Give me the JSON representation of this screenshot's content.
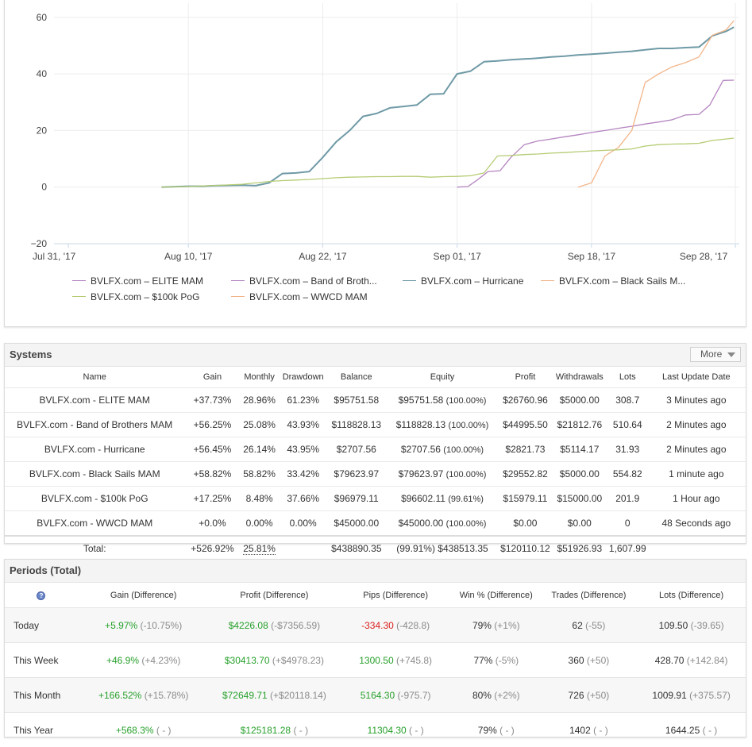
{
  "chart_data": {
    "type": "line",
    "x_ticks": [
      "Jul 31, '17",
      "Aug 10, '17",
      "Aug 22, '17",
      "Sep 01, '17",
      "Sep 18, '17",
      "Sep 28, '17"
    ],
    "y_ticks": [
      "60",
      "40",
      "20",
      "0",
      "−20"
    ],
    "ylim": [
      -20,
      65
    ],
    "legend_placement": "bottom",
    "series": [
      {
        "name": "BVLFX.com – ELITE MAM",
        "color": "#b484c0",
        "x": [
          30,
          30.8,
          31.5,
          32.3,
          33.2,
          34,
          35,
          36,
          37,
          38,
          39,
          40,
          41,
          42,
          43,
          44,
          45,
          46,
          47,
          48,
          48.8,
          49.8,
          50.6
        ],
        "y": [
          0,
          0.2,
          2.5,
          5.5,
          5.8,
          10.5,
          15,
          16.3,
          17,
          17.8,
          18.5,
          19.3,
          20,
          20.8,
          21.5,
          22.3,
          23,
          23.8,
          25.5,
          25.7,
          29,
          37.7,
          37.8
        ]
      },
      {
        "name": "BVLFX.com – Band of Broth...",
        "color": "#b484c0",
        "x": [],
        "y": []
      },
      {
        "name": "BVLFX.com – Hurricane",
        "color": "#6f9aa6",
        "x": [
          8,
          10,
          11,
          12,
          13,
          14,
          15,
          16,
          17,
          18,
          19,
          20,
          21,
          22,
          23,
          24,
          25,
          26,
          27,
          28,
          29,
          30,
          31,
          32,
          33,
          34,
          35,
          35.5,
          36,
          37,
          38,
          39,
          40,
          41,
          42,
          43,
          44,
          45,
          46,
          47,
          48,
          49,
          50,
          50.6
        ],
        "y": [
          0,
          0.3,
          0.3,
          0.5,
          0.6,
          0.7,
          0.5,
          1.5,
          4.8,
          5,
          5.5,
          10.5,
          16,
          20,
          25,
          26,
          28,
          28.5,
          29,
          32.8,
          33,
          40,
          41,
          44.3,
          44.6,
          45,
          45.3,
          45.4,
          45.6,
          46,
          46.3,
          46.7,
          47,
          47.3,
          47.7,
          48,
          48.5,
          49,
          49,
          49.3,
          49.5,
          53.5,
          55,
          56.5
        ]
      },
      {
        "name": "BVLFX.com – Black Sails M...",
        "color": "#f2b58a",
        "x": [
          39,
          40,
          41,
          42,
          43,
          44,
          45,
          46,
          47,
          48,
          49,
          50,
          50.6
        ],
        "y": [
          0,
          1.5,
          11,
          14,
          20,
          37,
          40,
          42.5,
          44,
          46,
          53.7,
          55.5,
          58.8
        ]
      },
      {
        "name": "BVLFX.com – $100k PoG",
        "color": "#b5cc74",
        "x": [
          8,
          10,
          11,
          12,
          13,
          14,
          15,
          16,
          17,
          18,
          19,
          20,
          21,
          22,
          23,
          24,
          25,
          26,
          27,
          28,
          29,
          30,
          31,
          32,
          33,
          34,
          35,
          36,
          37,
          38,
          39,
          40,
          41,
          42,
          43,
          44,
          45,
          46,
          47,
          48,
          49,
          50,
          50.6
        ],
        "y": [
          0,
          0.2,
          0.4,
          0.6,
          0.8,
          1,
          1.5,
          2,
          2.3,
          2.5,
          2.7,
          3,
          3.3,
          3.5,
          3.6,
          3.7,
          3.7,
          3.8,
          3.8,
          3.5,
          3.7,
          3.8,
          4,
          5,
          11,
          11.2,
          11.5,
          11.7,
          12,
          12.2,
          12.5,
          12.8,
          13,
          13.2,
          13.5,
          14.5,
          15,
          15.2,
          15.3,
          15.5,
          16.5,
          17,
          17.3
        ]
      },
      {
        "name": "BVLFX.com – WWCD MAM",
        "color": "#f2b58a",
        "x": [],
        "y": []
      }
    ]
  },
  "systems": {
    "title": "Systems",
    "more_label": "More",
    "columns": [
      "Name",
      "Gain",
      "Monthly",
      "Drawdown",
      "Balance",
      "Equity",
      "Profit",
      "Withdrawals",
      "Lots",
      "Last Update Date"
    ],
    "rows": [
      {
        "name": "BVLFX.com - ELITE MAM",
        "gain": "+37.73%",
        "monthly": "28.96%",
        "drawdown": "61.23%",
        "balance": "$95751.58",
        "equity": "$95751.58",
        "equity_pct": "(100.00%)",
        "profit": "$26760.96",
        "withdrawals": "$5000.00",
        "lots": "308.7",
        "updated": "3 Minutes ago"
      },
      {
        "name": "BVLFX.com - Band of Brothers MAM",
        "gain": "+56.25%",
        "monthly": "25.08%",
        "drawdown": "43.93%",
        "balance": "$118828.13",
        "equity": "$118828.13",
        "equity_pct": "(100.00%)",
        "profit": "$44995.50",
        "withdrawals": "$21812.76",
        "lots": "510.64",
        "updated": "2 Minutes ago"
      },
      {
        "name": "BVLFX.com - Hurricane",
        "gain": "+56.45%",
        "monthly": "26.14%",
        "drawdown": "43.95%",
        "balance": "$2707.56",
        "equity": "$2707.56",
        "equity_pct": "(100.00%)",
        "profit": "$2821.73",
        "withdrawals": "$5114.17",
        "lots": "31.93",
        "updated": "2 Minutes ago"
      },
      {
        "name": "BVLFX.com - Black Sails MAM",
        "gain": "+58.82%",
        "monthly": "58.82%",
        "drawdown": "33.42%",
        "balance": "$79623.97",
        "equity": "$79623.97",
        "equity_pct": "(100.00%)",
        "profit": "$29552.82",
        "withdrawals": "$5000.00",
        "lots": "554.82",
        "updated": "1 minute ago"
      },
      {
        "name": "BVLFX.com - $100k PoG",
        "gain": "+17.25%",
        "monthly": "8.48%",
        "drawdown": "37.66%",
        "balance": "$96979.11",
        "equity": "$96602.11",
        "equity_pct": "(99.61%)",
        "profit": "$15979.11",
        "withdrawals": "$15000.00",
        "lots": "201.9",
        "updated": "1 Hour ago"
      },
      {
        "name": "BVLFX.com - WWCD MAM",
        "gain": "+0.0%",
        "monthly": "0.00%",
        "drawdown": "0.00%",
        "balance": "$45000.00",
        "equity": "$45000.00",
        "equity_pct": "(100.00%)",
        "profit": "$0.00",
        "withdrawals": "$0.00",
        "lots": "0",
        "updated": "48 Seconds ago"
      }
    ],
    "total": {
      "label": "Total:",
      "gain": "+526.92%",
      "monthly": "25.81%",
      "balance": "$438890.35",
      "equity_pct": "(99.91%)",
      "equity": "$438513.35",
      "profit": "$120110.12",
      "withdrawals": "$51926.93",
      "lots": "1,607.99"
    }
  },
  "periods": {
    "title": "Periods (Total)",
    "info_icon": "question-icon",
    "columns": [
      "Gain (Difference)",
      "Profit (Difference)",
      "Pips (Difference)",
      "Win % (Difference)",
      "Trades (Difference)",
      "Lots (Difference)"
    ],
    "rows": [
      {
        "label": "Today",
        "gain": "+5.97%",
        "gain_diff": "(-10.75%)",
        "profit": "$4226.08",
        "profit_diff": "(-$7356.59)",
        "pips": "-334.30",
        "pips_diff": "(-428.8)",
        "pips_negative": true,
        "win": "79%",
        "win_diff": "(+1%)",
        "trades": "62",
        "trades_diff": "(-55)",
        "lots": "109.50",
        "lots_diff": "(-39.65)"
      },
      {
        "label": "This Week",
        "gain": "+46.9%",
        "gain_diff": "(+4.23%)",
        "profit": "$30413.70",
        "profit_diff": "(+$4978.23)",
        "pips": "1300.50",
        "pips_diff": "(+745.8)",
        "pips_negative": false,
        "win": "77%",
        "win_diff": "(-5%)",
        "trades": "360",
        "trades_diff": "(+50)",
        "lots": "428.70",
        "lots_diff": "(+142.84)"
      },
      {
        "label": "This Month",
        "gain": "+166.52%",
        "gain_diff": "(+15.78%)",
        "profit": "$72649.71",
        "profit_diff": "(+$20118.14)",
        "pips": "5164.30",
        "pips_diff": "(-975.7)",
        "pips_negative": false,
        "win": "80%",
        "win_diff": "(+2%)",
        "trades": "726",
        "trades_diff": "(+50)",
        "lots": "1009.91",
        "lots_diff": "(+375.57)"
      },
      {
        "label": "This Year",
        "gain": "+568.3%",
        "gain_diff": "( - )",
        "profit": "$125181.28",
        "profit_diff": "( - )",
        "pips": "11304.30",
        "pips_diff": "( - )",
        "pips_negative": false,
        "win": "79%",
        "win_diff": "( - )",
        "trades": "1402",
        "trades_diff": "( - )",
        "lots": "1644.25",
        "lots_diff": "( - )"
      }
    ]
  }
}
